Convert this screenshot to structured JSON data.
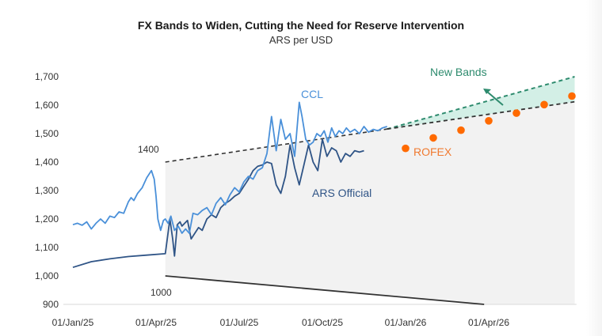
{
  "chart_data": {
    "type": "line",
    "title": "FX Bands to Widen, Cutting the Need for Reserve Intervention",
    "subtitle": "ARS per USD",
    "xlabel": "",
    "ylabel": "",
    "ylim": [
      900,
      1700
    ],
    "yticks": [
      900,
      1000,
      1100,
      1200,
      1300,
      1400,
      1500,
      1600,
      1700
    ],
    "ytick_labels": [
      "900",
      "1,000",
      "1,100",
      "1,200",
      "1,300",
      "1,400",
      "1,500",
      "1,600",
      "1,700"
    ],
    "x_unit": "days since 01/Jan/25",
    "xlim": [
      0,
      545
    ],
    "xticks": [
      0,
      90,
      180,
      270,
      360,
      450
    ],
    "xtick_labels": [
      "01/Jan/25",
      "01/Apr/25",
      "01/Jul/25",
      "01/Oct/25",
      "01/Jan/26",
      "01/Apr/26"
    ],
    "grid": false,
    "colors": {
      "ccl": "#4a90d9",
      "official": "#2f5486",
      "band": "#333333",
      "new_band": "#2e8b6e",
      "new_band_fill": "#d3efe6",
      "band_fill": "#f2f2f2",
      "rofex": "#ff6a00",
      "rofex_label": "#f07a30"
    },
    "series": [
      {
        "name": "CCL",
        "x": [
          0,
          5,
          10,
          15,
          20,
          25,
          30,
          35,
          40,
          45,
          50,
          55,
          60,
          63,
          66,
          70,
          75,
          80,
          85,
          88,
          90,
          92,
          95,
          98,
          100,
          103,
          106,
          110,
          114,
          118,
          122,
          126,
          130,
          135,
          140,
          145,
          150,
          155,
          160,
          165,
          170,
          175,
          180,
          185,
          190,
          195,
          200,
          205,
          210,
          215,
          220,
          225,
          230,
          235,
          240,
          245,
          248,
          252,
          256,
          260,
          264,
          268,
          272,
          276,
          280,
          284,
          288,
          292,
          296,
          300,
          305,
          310,
          315,
          320,
          325,
          330,
          335,
          340
        ],
        "values": [
          1180,
          1185,
          1178,
          1190,
          1165,
          1185,
          1200,
          1185,
          1210,
          1205,
          1225,
          1220,
          1260,
          1275,
          1265,
          1290,
          1310,
          1345,
          1370,
          1340,
          1280,
          1200,
          1160,
          1195,
          1200,
          1185,
          1210,
          1160,
          1175,
          1150,
          1165,
          1150,
          1220,
          1215,
          1230,
          1240,
          1215,
          1255,
          1275,
          1250,
          1285,
          1310,
          1295,
          1330,
          1350,
          1340,
          1370,
          1380,
          1430,
          1560,
          1440,
          1550,
          1480,
          1500,
          1420,
          1610,
          1560,
          1480,
          1460,
          1470,
          1500,
          1490,
          1510,
          1470,
          1520,
          1490,
          1510,
          1500,
          1520,
          1505,
          1515,
          1500,
          1525,
          1505,
          1515,
          1510,
          1520,
          1525
        ]
      },
      {
        "name": "ARS Official",
        "x": [
          0,
          20,
          40,
          60,
          80,
          100,
          105,
          108,
          110,
          113,
          116,
          118,
          121,
          124,
          128,
          132,
          136,
          140,
          145,
          150,
          155,
          160,
          165,
          170,
          175,
          180,
          185,
          190,
          195,
          200,
          205,
          210,
          215,
          220,
          225,
          230,
          235,
          240,
          245,
          250,
          255,
          260,
          265,
          270,
          275,
          280,
          285,
          290,
          295,
          300,
          305,
          310,
          315
        ],
        "values": [
          1030,
          1050,
          1060,
          1068,
          1073,
          1078,
          1200,
          1130,
          1070,
          1180,
          1190,
          1175,
          1185,
          1195,
          1130,
          1150,
          1170,
          1160,
          1200,
          1215,
          1205,
          1240,
          1255,
          1265,
          1280,
          1290,
          1315,
          1340,
          1370,
          1385,
          1390,
          1400,
          1395,
          1320,
          1290,
          1350,
          1460,
          1380,
          1320,
          1390,
          1460,
          1400,
          1370,
          1480,
          1420,
          1450,
          1440,
          1400,
          1430,
          1420,
          1440,
          1435,
          1440
        ]
      },
      {
        "name": "Upper band",
        "x": [
          100,
          340
        ],
        "values": [
          1400,
          1516
        ]
      },
      {
        "name": "Lower band",
        "x": [
          100,
          445
        ],
        "values": [
          1000,
          900
        ]
      },
      {
        "name": "New Bands upper",
        "x": [
          340,
          543
        ],
        "values": [
          1516,
          1700
        ]
      },
      {
        "name": "New Bands lower (extended band)",
        "x": [
          340,
          543
        ],
        "values": [
          1516,
          1612
        ]
      },
      {
        "name": "ROFEX",
        "x": [
          360,
          390,
          420,
          450,
          480,
          510,
          540
        ],
        "values": [
          1448,
          1485,
          1512,
          1545,
          1572,
          1602,
          1632
        ]
      }
    ],
    "annotations": [
      {
        "text": "CCL"
      },
      {
        "text": "ARS Official"
      },
      {
        "text": "ROFEX"
      },
      {
        "text": "New Bands"
      },
      {
        "text": "1400"
      },
      {
        "text": "1000"
      }
    ]
  }
}
